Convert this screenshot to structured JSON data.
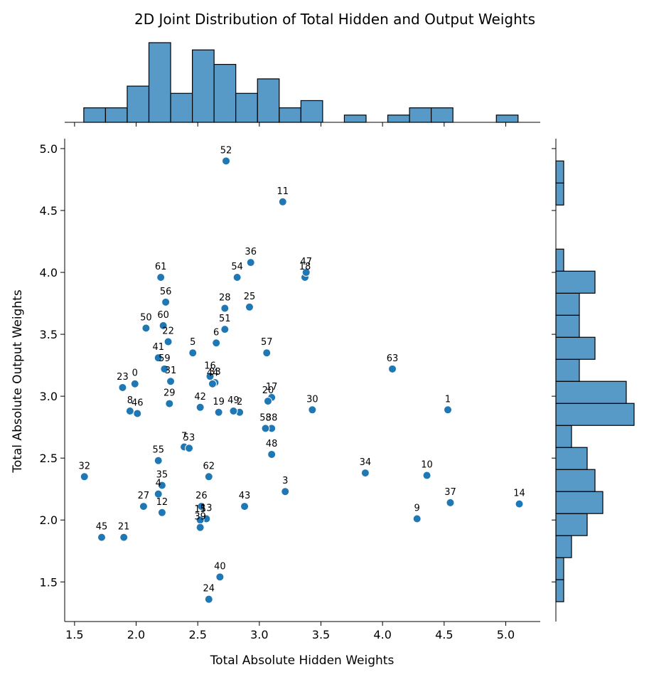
{
  "chart_data": {
    "type": "scatter",
    "title": "2D Joint Distribution of Total Hidden and Output Weights",
    "xlabel": "Total Absolute Hidden Weights",
    "ylabel": "Total Absolute Output Weights",
    "xlim": [
      1.42,
      5.28
    ],
    "ylim": [
      1.18,
      5.08
    ],
    "xticks": [
      1.5,
      2.0,
      2.5,
      3.0,
      3.5,
      4.0,
      4.5,
      5.0
    ],
    "xtick_labels": [
      "1.5",
      "2.0",
      "2.5",
      "3.0",
      "3.5",
      "4.0",
      "4.5",
      "5.0"
    ],
    "yticks": [
      1.5,
      2.0,
      2.5,
      3.0,
      3.5,
      4.0,
      4.5,
      5.0
    ],
    "ytick_labels": [
      "1.5",
      "2.0",
      "2.5",
      "3.0",
      "3.5",
      "4.0",
      "4.5",
      "5.0"
    ],
    "grid": false,
    "color": "#1f77b4",
    "hist_color": "#5799c7",
    "points": [
      {
        "label": "0",
        "x": 1.99,
        "y": 3.1
      },
      {
        "label": "1",
        "x": 4.53,
        "y": 2.89
      },
      {
        "label": "2",
        "x": 2.84,
        "y": 2.87
      },
      {
        "label": "3",
        "x": 3.21,
        "y": 2.23
      },
      {
        "label": "4",
        "x": 2.18,
        "y": 2.21
      },
      {
        "label": "5",
        "x": 2.46,
        "y": 3.35
      },
      {
        "label": "6",
        "x": 2.65,
        "y": 3.43
      },
      {
        "label": "7",
        "x": 2.39,
        "y": 2.59
      },
      {
        "label": "8",
        "x": 1.95,
        "y": 2.88
      },
      {
        "label": "9",
        "x": 4.28,
        "y": 2.01
      },
      {
        "label": "10",
        "x": 4.36,
        "y": 2.36
      },
      {
        "label": "11",
        "x": 3.19,
        "y": 4.57
      },
      {
        "label": "12",
        "x": 2.21,
        "y": 2.06
      },
      {
        "label": "13",
        "x": 2.57,
        "y": 2.01
      },
      {
        "label": "14",
        "x": 5.11,
        "y": 2.13
      },
      {
        "label": "15",
        "x": 2.52,
        "y": 2.0
      },
      {
        "label": "16",
        "x": 2.6,
        "y": 3.16
      },
      {
        "label": "17",
        "x": 3.1,
        "y": 2.99
      },
      {
        "label": "18",
        "x": 3.37,
        "y": 3.96
      },
      {
        "label": "19",
        "x": 2.67,
        "y": 2.87
      },
      {
        "label": "20",
        "x": 3.07,
        "y": 2.96
      },
      {
        "label": "21",
        "x": 1.9,
        "y": 1.86
      },
      {
        "label": "22",
        "x": 2.26,
        "y": 3.44
      },
      {
        "label": "23",
        "x": 1.89,
        "y": 3.07
      },
      {
        "label": "24",
        "x": 2.59,
        "y": 1.36
      },
      {
        "label": "25",
        "x": 2.92,
        "y": 3.72
      },
      {
        "label": "26",
        "x": 2.53,
        "y": 2.11
      },
      {
        "label": "27",
        "x": 2.06,
        "y": 2.11
      },
      {
        "label": "28",
        "x": 2.72,
        "y": 3.71
      },
      {
        "label": "29",
        "x": 2.27,
        "y": 2.94
      },
      {
        "label": "30",
        "x": 3.43,
        "y": 2.89
      },
      {
        "label": "31",
        "x": 2.28,
        "y": 3.12
      },
      {
        "label": "32",
        "x": 1.58,
        "y": 2.35
      },
      {
        "label": "33",
        "x": 2.64,
        "y": 3.11
      },
      {
        "label": "34",
        "x": 3.86,
        "y": 2.38
      },
      {
        "label": "35",
        "x": 2.21,
        "y": 2.28
      },
      {
        "label": "36",
        "x": 2.93,
        "y": 4.08
      },
      {
        "label": "37",
        "x": 4.55,
        "y": 2.14
      },
      {
        "label": "38",
        "x": 3.1,
        "y": 2.74
      },
      {
        "label": "39",
        "x": 2.52,
        "y": 1.94
      },
      {
        "label": "40",
        "x": 2.68,
        "y": 1.54
      },
      {
        "label": "41",
        "x": 2.18,
        "y": 3.31
      },
      {
        "label": "42",
        "x": 2.52,
        "y": 2.91
      },
      {
        "label": "43",
        "x": 2.88,
        "y": 2.11
      },
      {
        "label": "44",
        "x": 2.62,
        "y": 3.1
      },
      {
        "label": "45",
        "x": 1.72,
        "y": 1.86
      },
      {
        "label": "46",
        "x": 2.01,
        "y": 2.86
      },
      {
        "label": "47",
        "x": 3.38,
        "y": 4.0
      },
      {
        "label": "48",
        "x": 3.1,
        "y": 2.53
      },
      {
        "label": "49",
        "x": 2.79,
        "y": 2.88
      },
      {
        "label": "50",
        "x": 2.08,
        "y": 3.55
      },
      {
        "label": "51",
        "x": 2.72,
        "y": 3.54
      },
      {
        "label": "52",
        "x": 2.73,
        "y": 4.9
      },
      {
        "label": "53",
        "x": 2.43,
        "y": 2.58
      },
      {
        "label": "54",
        "x": 2.82,
        "y": 3.96
      },
      {
        "label": "55",
        "x": 2.18,
        "y": 2.48
      },
      {
        "label": "56",
        "x": 2.24,
        "y": 3.76
      },
      {
        "label": "57",
        "x": 3.06,
        "y": 3.35
      },
      {
        "label": "58",
        "x": 3.05,
        "y": 2.74
      },
      {
        "label": "59",
        "x": 2.23,
        "y": 3.22
      },
      {
        "label": "60",
        "x": 2.22,
        "y": 3.57
      },
      {
        "label": "61",
        "x": 2.2,
        "y": 3.96
      },
      {
        "label": "62",
        "x": 2.59,
        "y": 2.35
      },
      {
        "label": "63",
        "x": 4.08,
        "y": 3.22
      }
    ],
    "x_histogram": {
      "bin_edges": [
        1.575,
        1.7513,
        1.9275,
        2.1038,
        2.28,
        2.4563,
        2.6325,
        2.8088,
        2.985,
        3.1613,
        3.3375,
        3.5138,
        3.69,
        3.8663,
        4.0425,
        4.2188,
        4.395,
        4.5713,
        4.7475,
        4.9238,
        5.1
      ],
      "counts": [
        2,
        2,
        5,
        11,
        4,
        10,
        8,
        4,
        6,
        2,
        3,
        0,
        1,
        0,
        1,
        2,
        2,
        0,
        0,
        1
      ]
    },
    "y_histogram": {
      "bin_edges": [
        1.34,
        1.518,
        1.696,
        1.874,
        2.052,
        2.23,
        2.408,
        2.586,
        2.764,
        2.942,
        3.12,
        3.298,
        3.476,
        3.654,
        3.832,
        4.01,
        4.188,
        4.366,
        4.544,
        4.722,
        4.9
      ],
      "counts": [
        1,
        1,
        2,
        4,
        6,
        5,
        4,
        2,
        10,
        9,
        3,
        5,
        3,
        3,
        5,
        1,
        0,
        0,
        1,
        1
      ]
    }
  }
}
